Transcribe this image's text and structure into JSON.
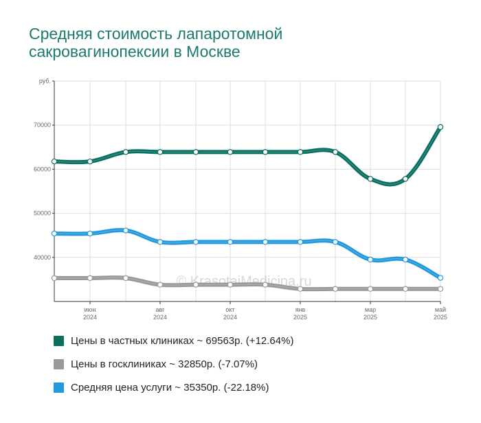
{
  "title_lines": [
    "Средняя стоимость лапаротомной",
    "сакровагинопексии в Москве"
  ],
  "watermark": "© KrasotaiMedicina.ru",
  "chart_data": {
    "type": "line",
    "title": "Средняя стоимость лапаротомной сакровагинопексии в Москве",
    "ylabel": "руб.",
    "ylim": [
      30000,
      80000
    ],
    "y_ticks": [
      40000,
      50000,
      60000,
      70000
    ],
    "x": [
      "2024-05",
      "2024-06",
      "2024-07",
      "2024-08",
      "2024-09",
      "2024-10",
      "2024-11",
      "2025-01",
      "2025-02",
      "2025-03",
      "2025-04",
      "2025-05"
    ],
    "x_tick_labels": [
      {
        "x": "2024-06",
        "month": "июн",
        "year": "2024"
      },
      {
        "x": "2024-08",
        "month": "авг",
        "year": "2024"
      },
      {
        "x": "2024-10",
        "month": "окт",
        "year": "2024"
      },
      {
        "x": "2025-01",
        "month": "янв",
        "year": "2025"
      },
      {
        "x": "2025-03",
        "month": "мар",
        "year": "2025"
      },
      {
        "x": "2025-05",
        "month": "май",
        "year": "2025"
      }
    ],
    "grid": true,
    "legend_position": "bottom",
    "series": [
      {
        "name": "Цены в частных клиниках ~ 69563р. (+12.64%)",
        "color": "#086e60",
        "values": [
          61750,
          61750,
          63900,
          63900,
          63900,
          63900,
          63900,
          63900,
          63900,
          57800,
          57800,
          69563
        ]
      },
      {
        "name": "Цены в госклиниках ~ 32850р. (-7.07%)",
        "color": "#999999",
        "values": [
          35300,
          35300,
          35300,
          33800,
          33800,
          33800,
          33800,
          32850,
          32850,
          32850,
          32850,
          32850
        ]
      },
      {
        "name": "Средняя цена услуги ~ 35350р. (-22.18%)",
        "color": "#2299dd",
        "values": [
          45400,
          45400,
          46100,
          43500,
          43500,
          43500,
          43500,
          43500,
          43500,
          39500,
          39500,
          35350
        ]
      }
    ]
  }
}
